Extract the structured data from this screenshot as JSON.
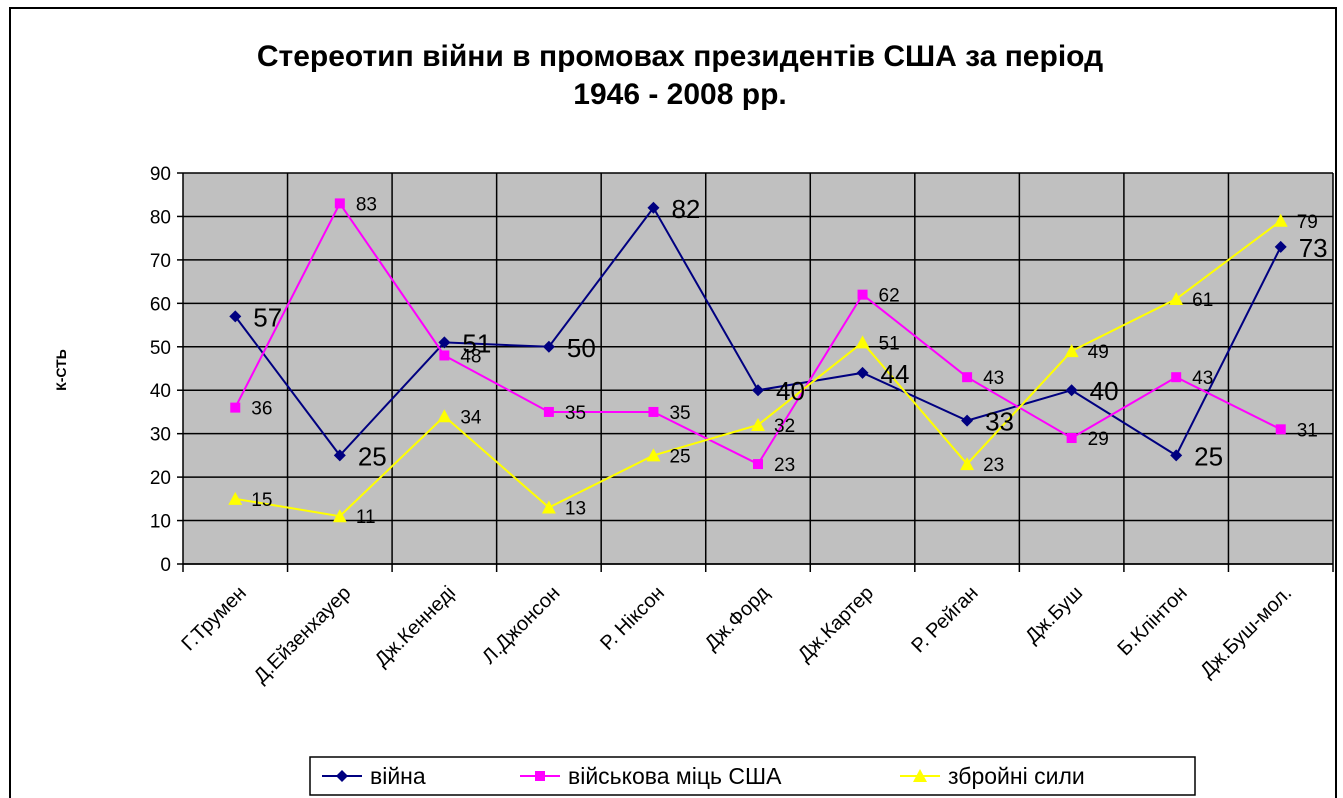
{
  "chart_data": {
    "type": "line",
    "title": "Стереотип війни в промовах президентів США за період 1946 - 2008 рр.",
    "y_label": "К-СТЬ",
    "categories": [
      "Г.Трумен",
      "Д.Ейзенхауер",
      "Дж.Кеннеді",
      "Л.Джонсон",
      "Р. Ніксон",
      "Дж.Форд",
      "Дж.Картер",
      "Р. Рейган",
      "Дж.Буш",
      "Б.Клінтон",
      "Дж.Буш-мол."
    ],
    "series": [
      {
        "name": "війна",
        "color": "#000080",
        "marker": "diamond",
        "values": [
          57,
          25,
          51,
          50,
          82,
          40,
          44,
          33,
          40,
          25,
          73
        ]
      },
      {
        "name": "військова міць США",
        "color": "#ff00ff",
        "marker": "square",
        "values": [
          36,
          83,
          48,
          35,
          35,
          23,
          62,
          43,
          29,
          43,
          31
        ]
      },
      {
        "name": "збройні сили",
        "color": "#ffff00",
        "marker": "triangle",
        "values": [
          15,
          11,
          34,
          13,
          25,
          32,
          51,
          23,
          49,
          61,
          79
        ]
      }
    ],
    "ylim": [
      0,
      90
    ],
    "yticks": [
      0,
      10,
      20,
      30,
      40,
      50,
      60,
      70,
      80,
      90
    ],
    "grid": true,
    "legend": "bottom"
  }
}
